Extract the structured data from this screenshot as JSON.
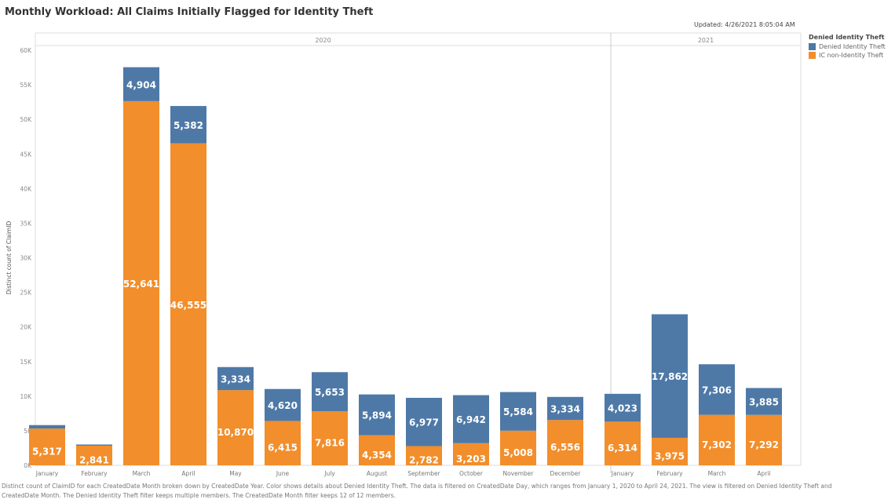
{
  "title": "Monthly Workload: All Claims Initially Flagged for Identity Theft",
  "updated": "Updated: 4/26/2021 8:05:04 AM",
  "legend": {
    "title": "Denied Identity Theft",
    "items": [
      {
        "label": "Denied Identity Theft",
        "color": "#4e79a7"
      },
      {
        "label": "IC non-Identity Theft",
        "color": "#f28e2b"
      }
    ]
  },
  "footnote": "Distinct count of ClaimID for each CreatedDate Month broken down by CreatedDate Year. Color shows details about Denied Identity Theft. The data is filtered on CreatedDate Day, which ranges from January 1, 2020 to April 24, 2021. The view is filtered on Denied Identity Theft and CreatedDate Month. The Denied Identity Theft filter keeps multiple members. The CreatedDate Month filter keeps 12 of 12 members.",
  "chart_data": {
    "type": "bar",
    "stacked": true,
    "ylabel": "Distinct count of ClaimID",
    "ylim": [
      0,
      60000
    ],
    "yticks": [
      "0K",
      "5K",
      "10K",
      "15K",
      "20K",
      "25K",
      "30K",
      "35K",
      "40K",
      "45K",
      "50K",
      "55K",
      "60K"
    ],
    "grid": false,
    "legend_position": "right",
    "groups": [
      {
        "year": "2020",
        "categories": [
          "January",
          "February",
          "March",
          "April",
          "May",
          "June",
          "July",
          "August",
          "September",
          "October",
          "November",
          "December"
        ]
      },
      {
        "year": "2021",
        "categories": [
          "January",
          "February",
          "March",
          "April"
        ]
      }
    ],
    "series": [
      {
        "name": "IC non-Identity Theft",
        "color": "#f28e2b",
        "values": [
          5317,
          2841,
          52641,
          46555,
          10870,
          6415,
          7816,
          4354,
          2782,
          3203,
          5008,
          6556,
          6314,
          3975,
          7302,
          7292
        ],
        "labels": [
          "5,317",
          "2,841",
          "52,641",
          "46,555",
          "10,870",
          "6,415",
          "7,816",
          "4,354",
          "2,782",
          "3,203",
          "5,008",
          "6,556",
          "6,314",
          "3,975",
          "7,302",
          "7,292"
        ]
      },
      {
        "name": "Denied Identity Theft",
        "color": "#4e79a7",
        "values": [
          500,
          170,
          4904,
          5382,
          3334,
          4620,
          5653,
          5894,
          6977,
          6942,
          5584,
          3334,
          4023,
          17862,
          7306,
          3885
        ],
        "labels": [
          "",
          "",
          "4,904",
          "5,382",
          "3,334",
          "4,620",
          "5,653",
          "5,894",
          "6,977",
          "6,942",
          "5,584",
          "3,334",
          "4,023",
          "17,862",
          "7,306",
          "3,885"
        ]
      }
    ]
  }
}
